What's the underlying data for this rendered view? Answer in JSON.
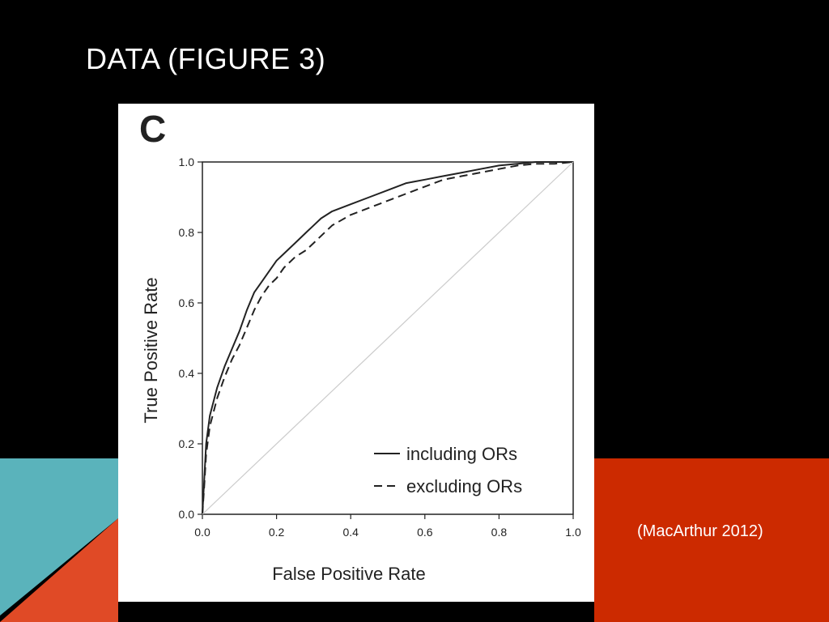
{
  "slide": {
    "title": "DATA (FIGURE 3)",
    "citation": "(MacArthur 2012)",
    "colors": {
      "background": "#000000",
      "teal": "#5ab3bb",
      "orange": "#e04a26",
      "red": "#cc2a00",
      "text": "#ffffff"
    }
  },
  "figure": {
    "panel_letter": "C"
  },
  "chart_data": {
    "type": "line",
    "xlabel": "False Positive Rate",
    "ylabel": "True Positive Rate",
    "xlim": [
      0,
      1
    ],
    "ylim": [
      0,
      1
    ],
    "xticks": [
      "0.0",
      "0.2",
      "0.4",
      "0.6",
      "0.8",
      "1.0"
    ],
    "yticks": [
      "0.0",
      "0.2",
      "0.4",
      "0.6",
      "0.8",
      "1.0"
    ],
    "grid": false,
    "legend_position": "bottom-right",
    "series": [
      {
        "name": "including ORs",
        "style": "solid",
        "x": [
          0.0,
          0.005,
          0.01,
          0.02,
          0.04,
          0.06,
          0.08,
          0.1,
          0.12,
          0.14,
          0.16,
          0.18,
          0.2,
          0.22,
          0.25,
          0.28,
          0.3,
          0.32,
          0.35,
          0.4,
          0.45,
          0.5,
          0.55,
          0.6,
          0.65,
          0.7,
          0.75,
          0.8,
          0.85,
          0.9,
          0.95,
          1.0
        ],
        "y": [
          0.0,
          0.1,
          0.2,
          0.28,
          0.36,
          0.42,
          0.47,
          0.52,
          0.58,
          0.63,
          0.66,
          0.69,
          0.72,
          0.74,
          0.77,
          0.8,
          0.82,
          0.84,
          0.86,
          0.88,
          0.9,
          0.92,
          0.94,
          0.95,
          0.96,
          0.97,
          0.98,
          0.99,
          0.995,
          1.0,
          1.0,
          1.0
        ]
      },
      {
        "name": "excluding ORs",
        "style": "dashed",
        "x": [
          0.0,
          0.005,
          0.01,
          0.02,
          0.04,
          0.06,
          0.08,
          0.1,
          0.12,
          0.14,
          0.16,
          0.18,
          0.2,
          0.22,
          0.25,
          0.28,
          0.3,
          0.32,
          0.35,
          0.4,
          0.45,
          0.5,
          0.55,
          0.6,
          0.65,
          0.7,
          0.75,
          0.8,
          0.85,
          0.9,
          0.95,
          1.0
        ],
        "y": [
          0.0,
          0.08,
          0.17,
          0.25,
          0.33,
          0.39,
          0.44,
          0.48,
          0.53,
          0.58,
          0.62,
          0.65,
          0.67,
          0.7,
          0.73,
          0.75,
          0.77,
          0.79,
          0.82,
          0.85,
          0.87,
          0.89,
          0.91,
          0.93,
          0.95,
          0.96,
          0.97,
          0.98,
          0.99,
          0.995,
          0.995,
          1.0
        ]
      },
      {
        "name": "",
        "style": "diagonal",
        "x": [
          0,
          1
        ],
        "y": [
          0,
          1
        ]
      }
    ]
  }
}
